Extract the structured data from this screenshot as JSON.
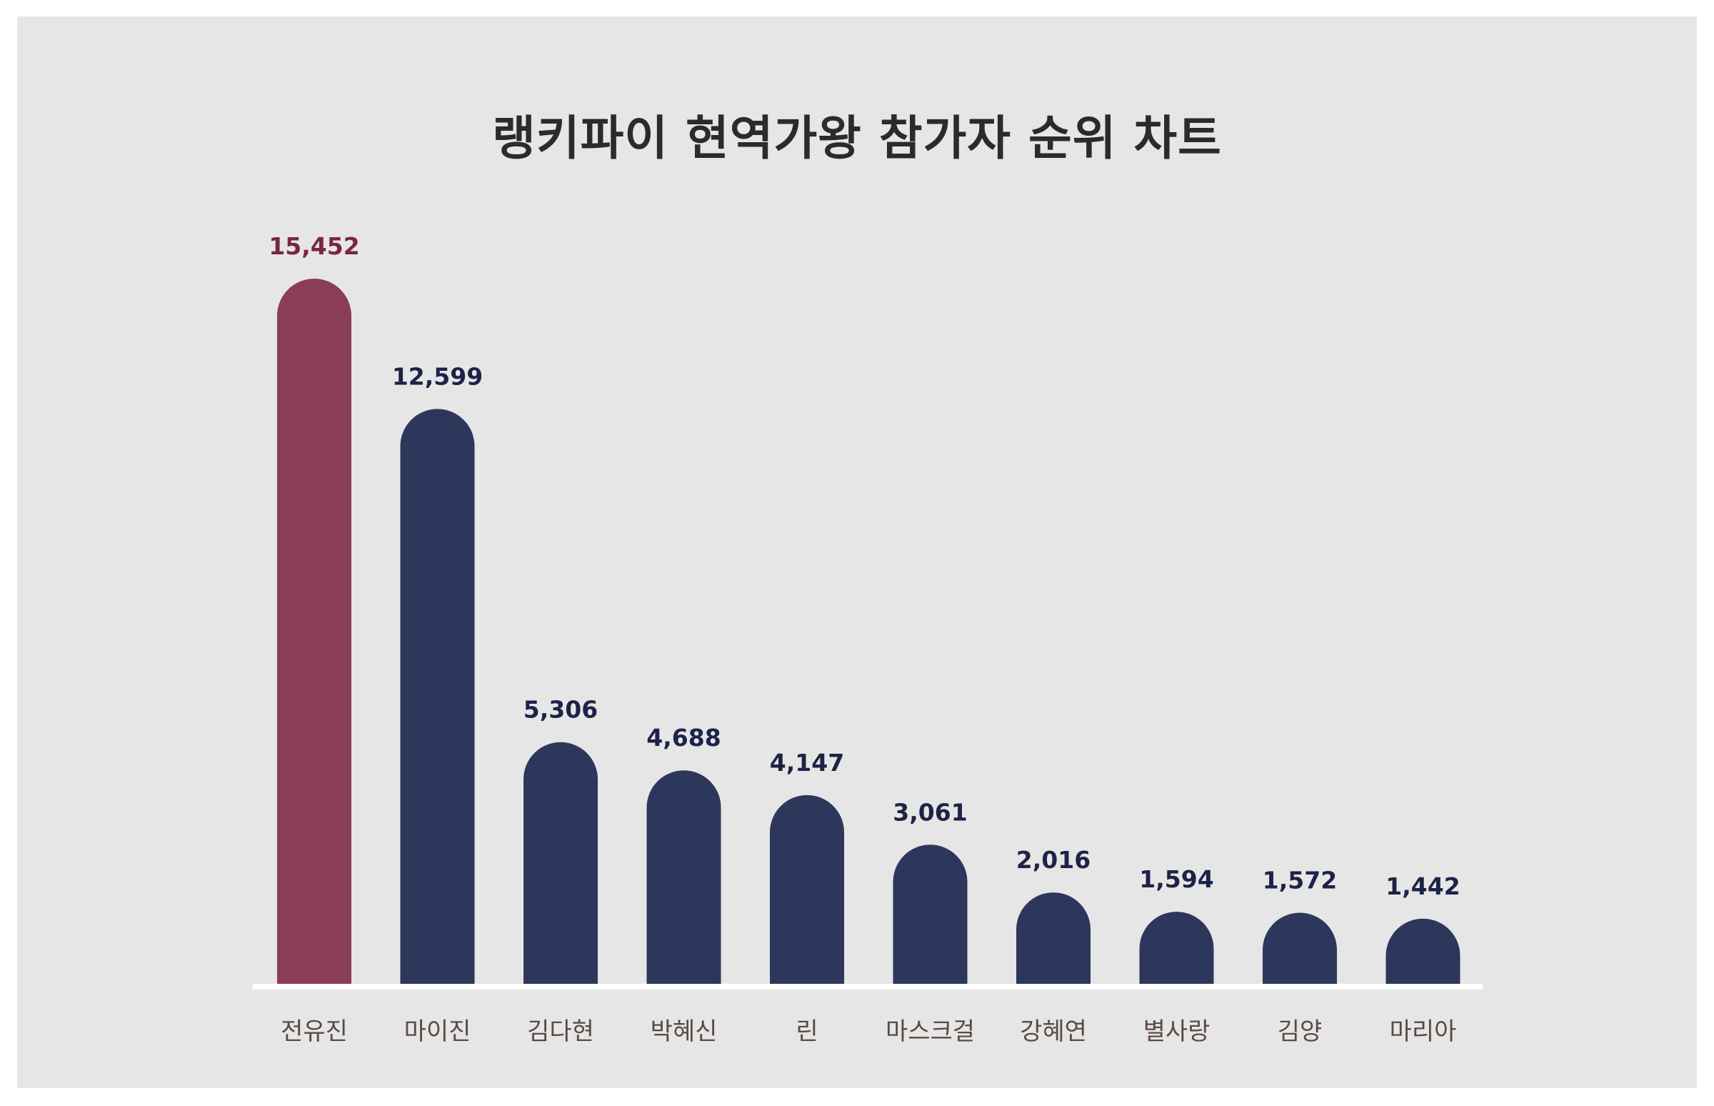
{
  "chart_data": {
    "type": "bar",
    "title": "랭키파이 현역가왕 참가자 순위 차트",
    "xlabel": "",
    "ylabel": "",
    "categories": [
      "전유진",
      "마이진",
      "김다현",
      "박혜신",
      "린",
      "마스크걸",
      "강혜연",
      "별사랑",
      "김양",
      "마리아"
    ],
    "values": [
      15452,
      12599,
      5306,
      4688,
      4147,
      3061,
      2016,
      1594,
      1572,
      1442
    ],
    "value_labels": [
      "15,452",
      "12,599",
      "5,306",
      "4,688",
      "4,147",
      "3,061",
      "2,016",
      "1,594",
      "1,572",
      "1,442"
    ],
    "ylim": [
      0,
      15452
    ],
    "grid": false,
    "legend": "none",
    "highlight_index": 0,
    "colors": {
      "highlight_bar": "#8a3d57",
      "bar": "#2d375c",
      "highlight_label": "#7a2640",
      "label": "#1d2347",
      "category_text": "#5a4a44",
      "baseline": "#ffffff",
      "background": "#e6e6e6",
      "title": "#2b2b2b"
    }
  }
}
